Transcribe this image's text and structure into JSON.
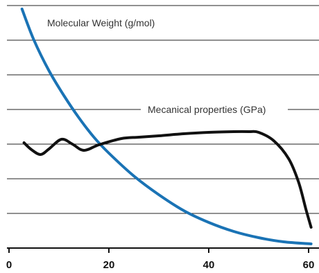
{
  "chart_data": {
    "type": "line",
    "xlim": [
      0,
      60
    ],
    "x_ticks": [
      0,
      20,
      40,
      60
    ],
    "grid": "horizontal",
    "series": [
      {
        "name": "Molecular Weight (g/mol)",
        "color": "#1a73b5",
        "x": [
          2.6,
          5,
          8,
          11,
          14,
          17,
          20,
          25,
          30,
          35,
          40,
          45,
          50,
          55,
          60.5
        ],
        "y": [
          345,
          300,
          256,
          220,
          188,
          160,
          137,
          104,
          77,
          54,
          37,
          24,
          15,
          9,
          6
        ]
      },
      {
        "name": "Mecanical properties (GPa)",
        "color": "#111111",
        "x": [
          3,
          4.5,
          6.3,
          8,
          10.5,
          12.7,
          15,
          18,
          22.5,
          26,
          30,
          35,
          40,
          45,
          48,
          50,
          53,
          56,
          58,
          59.5,
          60.5
        ],
        "y": [
          152,
          142,
          135,
          143,
          157,
          150,
          141,
          149,
          158,
          160,
          162,
          165,
          167,
          168,
          168,
          167,
          155,
          129,
          95,
          55,
          30
        ]
      }
    ]
  }
}
